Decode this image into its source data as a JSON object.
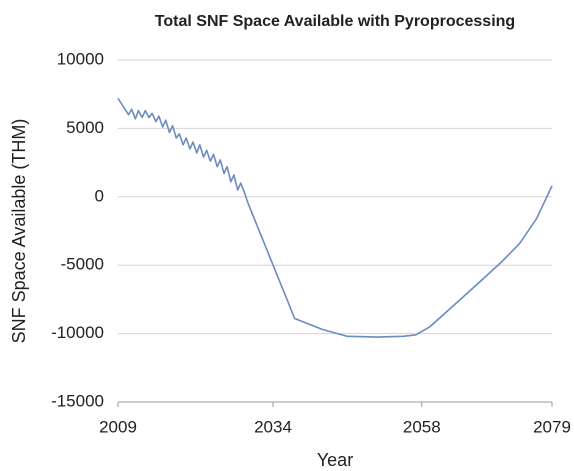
{
  "chart_data": {
    "type": "line",
    "title": "Total SNF Space Available with Pyroprocessing",
    "x_label": "Year",
    "y_label": "SNF Space Available (THM)",
    "xlim": [
      2009,
      2079
    ],
    "xticks": [
      2009,
      2034,
      2058,
      2079
    ],
    "ylim": [
      -15000,
      10000
    ],
    "yticks": [
      10000,
      5000,
      0,
      -5000,
      -10000,
      -15000
    ],
    "grid": true,
    "x": [
      2009,
      2010,
      2010.7,
      2011.2,
      2011.8,
      2012.3,
      2012.9,
      2013.4,
      2014,
      2014.5,
      2015.1,
      2015.6,
      2016.2,
      2016.7,
      2017.3,
      2017.8,
      2018.4,
      2018.9,
      2019.5,
      2020,
      2020.6,
      2021.1,
      2021.7,
      2022.2,
      2022.8,
      2023.3,
      2023.9,
      2024.4,
      2025,
      2025.5,
      2026.1,
      2026.6,
      2027.2,
      2027.7,
      2028.3,
      2028.8,
      2029.4,
      2030,
      2037.5,
      2042,
      2046,
      2051,
      2055,
      2057,
      2059.3,
      2063,
      2067.4,
      2071,
      2073.8,
      2076.5,
      2079
    ],
    "series": [
      {
        "name": "SNF Space Available",
        "color": "#6b8cc0",
        "values": [
          7200,
          6500,
          6000,
          6400,
          5700,
          6300,
          5800,
          6300,
          5800,
          6100,
          5500,
          5900,
          5100,
          5600,
          4700,
          5200,
          4300,
          4600,
          3800,
          4300,
          3500,
          4000,
          3200,
          3800,
          2900,
          3400,
          2600,
          3100,
          2200,
          2700,
          1700,
          2200,
          1100,
          1600,
          500,
          1000,
          300,
          -500,
          -8900,
          -9700,
          -10200,
          -10250,
          -10200,
          -10100,
          -9500,
          -8000,
          -6200,
          -4700,
          -3400,
          -1600,
          800
        ]
      }
    ]
  }
}
